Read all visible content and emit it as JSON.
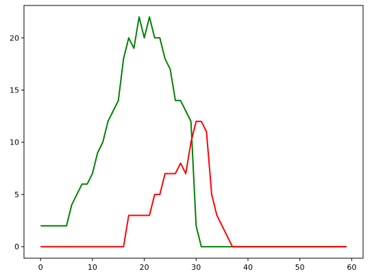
{
  "chart_data": {
    "type": "line",
    "title": "",
    "xlabel": "",
    "ylabel": "",
    "xlim": [
      -3.2,
      62.2
    ],
    "ylim": [
      -1.1,
      23.1
    ],
    "grid": false,
    "x_ticks": [
      0,
      10,
      20,
      30,
      40,
      50,
      60
    ],
    "y_ticks": [
      0,
      5,
      10,
      15,
      20
    ],
    "x_tick_labels": [
      "0",
      "10",
      "20",
      "30",
      "40",
      "50",
      "60"
    ],
    "y_tick_labels": [
      "0",
      "5",
      "10",
      "15",
      "20"
    ],
    "series": [
      {
        "color": "#008000",
        "x": [
          0,
          1,
          2,
          3,
          4,
          5,
          6,
          7,
          8,
          9,
          10,
          11,
          12,
          13,
          14,
          15,
          16,
          17,
          18,
          19,
          20,
          21,
          22,
          23,
          24,
          25,
          26,
          27,
          28,
          29,
          30,
          31,
          32,
          33,
          34,
          35,
          36,
          37,
          38,
          39,
          40,
          41,
          42,
          43,
          44,
          45,
          46,
          47,
          48,
          49,
          50,
          51,
          52,
          53,
          54,
          55,
          56,
          57,
          58,
          59
        ],
        "y": [
          2,
          2,
          2,
          2,
          2,
          2,
          4,
          5,
          6,
          6,
          7,
          9,
          10,
          12,
          13,
          14,
          18,
          20,
          19,
          22,
          20,
          22,
          20,
          20,
          18,
          17,
          14,
          14,
          13,
          12,
          2,
          0,
          0,
          0,
          0,
          0,
          0,
          0,
          0,
          0,
          0,
          0,
          0,
          0,
          0,
          0,
          0,
          0,
          0,
          0,
          0,
          0,
          0,
          0,
          0,
          0,
          0,
          0,
          0,
          0
        ]
      },
      {
        "color": "#ff0000",
        "x": [
          0,
          1,
          2,
          3,
          4,
          5,
          6,
          7,
          8,
          9,
          10,
          11,
          12,
          13,
          14,
          15,
          16,
          17,
          18,
          19,
          20,
          21,
          22,
          23,
          24,
          25,
          26,
          27,
          28,
          29,
          30,
          31,
          32,
          33,
          34,
          35,
          36,
          37,
          38,
          39,
          40,
          41,
          42,
          43,
          44,
          45,
          46,
          47,
          48,
          49,
          50,
          51,
          52,
          53,
          54,
          55,
          56,
          57,
          58,
          59
        ],
        "y": [
          0,
          0,
          0,
          0,
          0,
          0,
          0,
          0,
          0,
          0,
          0,
          0,
          0,
          0,
          0,
          0,
          0,
          3,
          3,
          3,
          3,
          3,
          5,
          5,
          7,
          7,
          7,
          8,
          7,
          10,
          12,
          12,
          11,
          5,
          3,
          2,
          1,
          0,
          0,
          0,
          0,
          0,
          0,
          0,
          0,
          0,
          0,
          0,
          0,
          0,
          0,
          0,
          0,
          0,
          0,
          0,
          0,
          0,
          0,
          0
        ]
      }
    ]
  }
}
